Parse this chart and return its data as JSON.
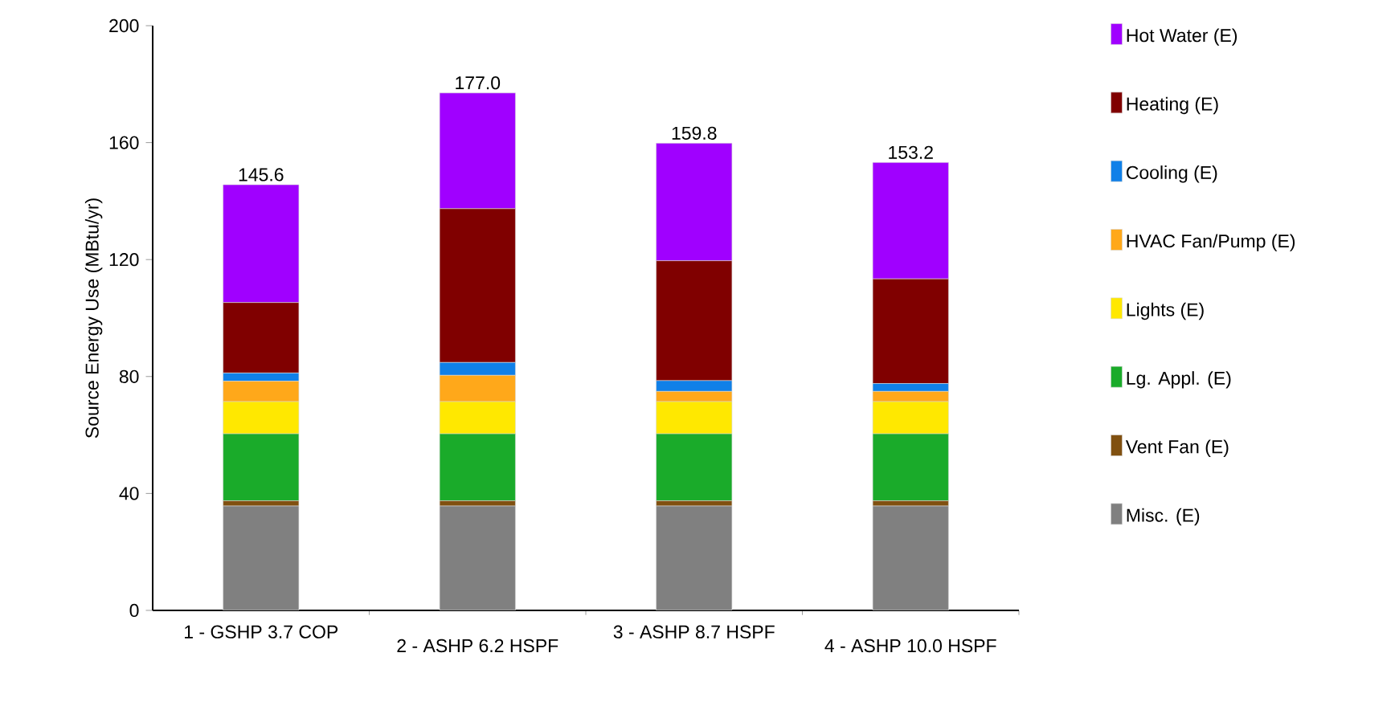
{
  "chart_data": {
    "type": "bar",
    "stacked": true,
    "ylabel": "Source Energy Use (MBtu/yr)",
    "categories": [
      "1 - GSHP 3.7 COP",
      "2 - ASHP 6.2 HSPF",
      "3 - ASHP 8.7 HSPF",
      "4 - ASHP 10.0 HSPF"
    ],
    "series": [
      {
        "name": "Misc. (E)",
        "color": "#808080",
        "values": [
          35.7,
          35.7,
          35.7,
          35.7
        ]
      },
      {
        "name": "Vent Fan (E)",
        "color": "#805010",
        "values": [
          1.8,
          1.8,
          1.8,
          1.8
        ]
      },
      {
        "name": "Lg. Appl. (E)",
        "color": "#1aab2a",
        "values": [
          22.9,
          22.9,
          22.9,
          22.9
        ]
      },
      {
        "name": "Lights (E)",
        "color": "#ffe800",
        "values": [
          11.0,
          11.0,
          11.0,
          11.0
        ]
      },
      {
        "name": "HVAC Fan/Pump (E)",
        "color": "#ffa81a",
        "values": [
          7.0,
          9.0,
          3.5,
          3.5
        ]
      },
      {
        "name": "Cooling (E)",
        "color": "#1080e8",
        "values": [
          2.8,
          4.4,
          3.7,
          2.7
        ]
      },
      {
        "name": "Heating (E)",
        "color": "#800000",
        "values": [
          24.1,
          52.6,
          41.0,
          35.8
        ]
      },
      {
        "name": "Hot Water (E)",
        "color": "#a000ff",
        "values": [
          40.3,
          39.6,
          40.2,
          39.8
        ]
      }
    ],
    "totals": [
      "145.6",
      "177.0",
      "159.8",
      "153.2"
    ],
    "ylim": [
      0,
      200
    ],
    "yticks": [
      0,
      40,
      80,
      120,
      160,
      200
    ],
    "grid": false,
    "legend": "right"
  }
}
